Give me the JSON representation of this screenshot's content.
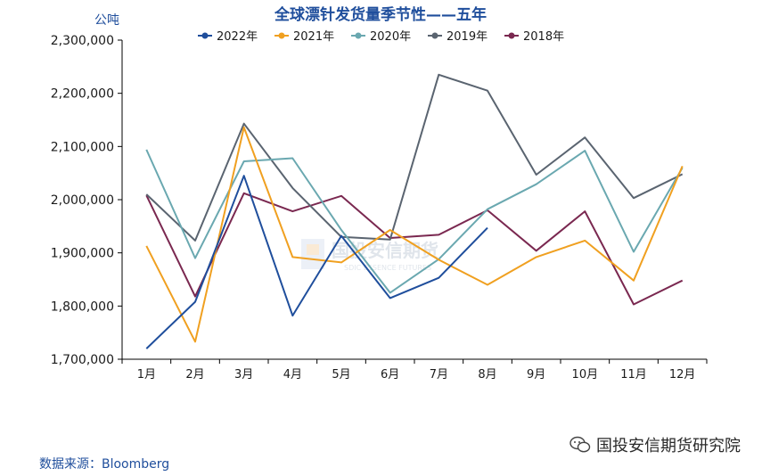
{
  "chart_data": {
    "type": "line",
    "title": "全球漂针发货量季节性——五年",
    "ylabel": "公吨",
    "ylim": [
      1700000,
      2300000
    ],
    "yticks": [
      1700000,
      1800000,
      1900000,
      2000000,
      2100000,
      2200000,
      2300000
    ],
    "ytick_labels": [
      "1,700,000",
      "1,800,000",
      "1,900,000",
      "2,000,000",
      "2,100,000",
      "2,200,000",
      "2,300,000"
    ],
    "categories": [
      "1月",
      "2月",
      "3月",
      "4月",
      "5月",
      "6月",
      "7月",
      "8月",
      "9月",
      "10月",
      "11月",
      "12月"
    ],
    "legend_position": "top-center",
    "series": [
      {
        "name": "2022年",
        "color": "#1f4e9c",
        "values": [
          1720000,
          1808000,
          2045000,
          1782000,
          1932000,
          1815000,
          1853000,
          1947000,
          null,
          null,
          null,
          null
        ]
      },
      {
        "name": "2021年",
        "color": "#f0a020",
        "values": [
          1913000,
          1733000,
          2136000,
          1892000,
          1882000,
          1943000,
          1887000,
          1840000,
          1892000,
          1923000,
          1848000,
          2063000
        ]
      },
      {
        "name": "2020年",
        "color": "#6aa8b0",
        "values": [
          2094000,
          1890000,
          2072000,
          2078000,
          1943000,
          1825000,
          1888000,
          1982000,
          2029000,
          2092000,
          1902000,
          2060000
        ]
      },
      {
        "name": "2019年",
        "color": "#5a6470",
        "values": [
          2010000,
          1923000,
          2143000,
          2022000,
          1930000,
          1925000,
          2235000,
          2205000,
          2047000,
          2117000,
          2003000,
          2048000
        ]
      },
      {
        "name": "2018年",
        "color": "#7a2850",
        "values": [
          2008000,
          1818000,
          2012000,
          1978000,
          2007000,
          1928000,
          1934000,
          1980000,
          1904000,
          1978000,
          1803000,
          1848000
        ]
      }
    ]
  },
  "watermark": "国投安信期货",
  "watermark_sub": "SDIC ESSENCE FUTURES",
  "source": "数据来源：Bloomberg",
  "footer_brand": "国投安信期货研究院",
  "icons": {
    "footer": "wechat-icon"
  }
}
